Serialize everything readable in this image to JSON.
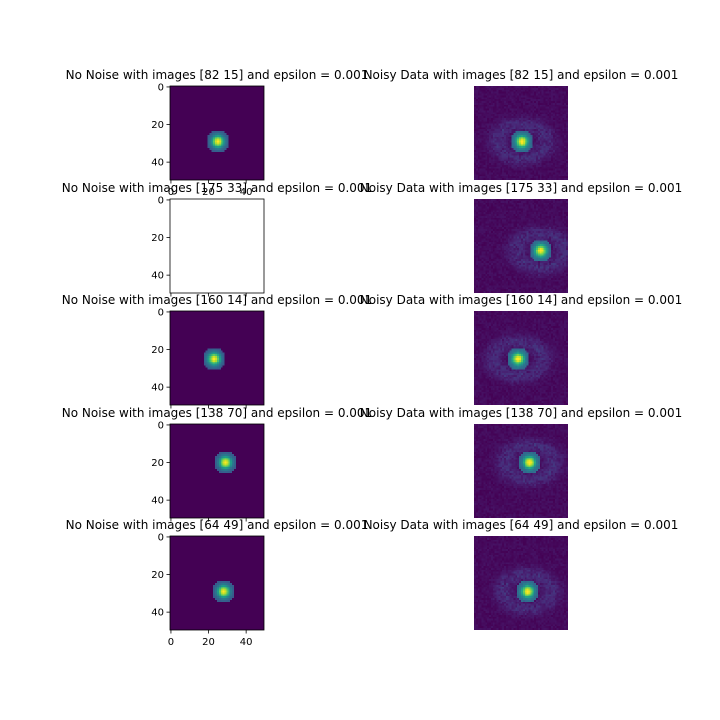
{
  "figure": {
    "background": "#ffffff"
  },
  "colors": {
    "cmap_low": "#440154",
    "cmap_mid": "#21918c",
    "cmap_high": "#fde725",
    "axis": "#000000"
  },
  "chart_data": [
    {
      "type": "heatmap",
      "title": "No Noise with images [82 15] and epsilon = 0.001",
      "show_axes": true,
      "show_xticks": true,
      "ytick_labels": [
        "0",
        "20",
        "40"
      ],
      "xtick_labels": [
        "0",
        "20",
        "40"
      ],
      "xlim": [
        0,
        50
      ],
      "ylim": [
        0,
        50
      ],
      "blank": false,
      "noisy": false,
      "peak": [
        25,
        29
      ],
      "spot_half_size": 4.5
    },
    {
      "type": "heatmap",
      "title": "Noisy Data with images [82 15] and epsilon = 0.001",
      "show_axes": false,
      "xlim": [
        0,
        50
      ],
      "ylim": [
        0,
        50
      ],
      "blank": false,
      "noisy": true,
      "peak": [
        25,
        29
      ],
      "spot_half_size": 4.5
    },
    {
      "type": "heatmap",
      "title": "No Noise with images [175  33] and epsilon = 0.001",
      "show_axes": true,
      "show_xticks": false,
      "ytick_labels": [
        "0",
        "20",
        "40"
      ],
      "xlim": [
        0,
        50
      ],
      "ylim": [
        0,
        50
      ],
      "blank": true,
      "noisy": false
    },
    {
      "type": "heatmap",
      "title": "Noisy Data with images [175  33] and epsilon = 0.001",
      "show_axes": false,
      "xlim": [
        0,
        50
      ],
      "ylim": [
        0,
        50
      ],
      "blank": false,
      "noisy": true,
      "peak": [
        35,
        27
      ],
      "spot_half_size": 4.5
    },
    {
      "type": "heatmap",
      "title": "No Noise with images [160  14] and epsilon = 0.001",
      "show_axes": true,
      "show_xticks": false,
      "ytick_labels": [
        "0",
        "20",
        "40"
      ],
      "xlim": [
        0,
        50
      ],
      "ylim": [
        0,
        50
      ],
      "blank": false,
      "noisy": false,
      "peak": [
        23,
        25
      ],
      "spot_half_size": 4.5
    },
    {
      "type": "heatmap",
      "title": "Noisy Data with images [160  14] and epsilon = 0.001",
      "show_axes": false,
      "xlim": [
        0,
        50
      ],
      "ylim": [
        0,
        50
      ],
      "blank": false,
      "noisy": true,
      "peak": [
        23,
        25
      ],
      "spot_half_size": 4.5
    },
    {
      "type": "heatmap",
      "title": "No Noise with images [138  70] and epsilon = 0.001",
      "show_axes": true,
      "show_xticks": false,
      "ytick_labels": [
        "0",
        "20",
        "40"
      ],
      "xlim": [
        0,
        50
      ],
      "ylim": [
        0,
        50
      ],
      "blank": false,
      "noisy": false,
      "peak": [
        29,
        20
      ],
      "spot_half_size": 4.5
    },
    {
      "type": "heatmap",
      "title": "Noisy Data with images [138  70] and epsilon = 0.001",
      "show_axes": false,
      "xlim": [
        0,
        50
      ],
      "ylim": [
        0,
        50
      ],
      "blank": false,
      "noisy": true,
      "peak": [
        29,
        20
      ],
      "spot_half_size": 4.5
    },
    {
      "type": "heatmap",
      "title": "No Noise with images [64 49] and epsilon = 0.001",
      "show_axes": true,
      "show_xticks": true,
      "ytick_labels": [
        "0",
        "20",
        "40"
      ],
      "xtick_labels": [
        "0",
        "20",
        "40"
      ],
      "xlim": [
        0,
        50
      ],
      "ylim": [
        0,
        50
      ],
      "blank": false,
      "noisy": false,
      "peak": [
        28,
        29
      ],
      "spot_half_size": 4.5
    },
    {
      "type": "heatmap",
      "title": "Noisy Data with images [64 49] and epsilon = 0.001",
      "show_axes": false,
      "xlim": [
        0,
        50
      ],
      "ylim": [
        0,
        50
      ],
      "blank": false,
      "noisy": true,
      "peak": [
        28,
        29
      ],
      "spot_half_size": 4.5
    }
  ]
}
